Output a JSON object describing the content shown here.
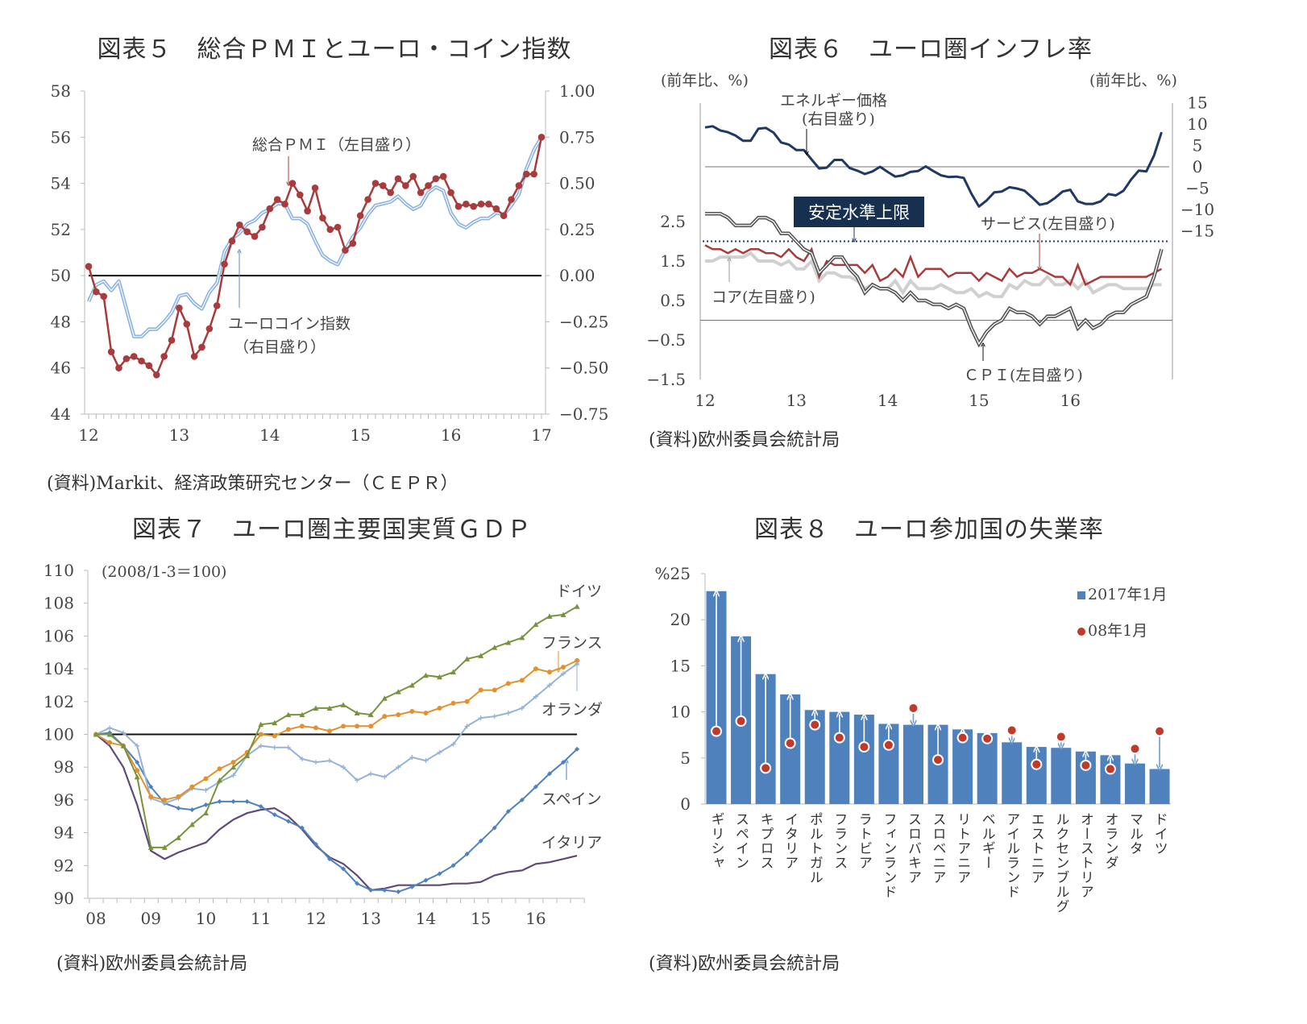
{
  "figures": {
    "fig5": {
      "title": "図表５　総合ＰＭＩとユーロ・コイン指数",
      "source": "(資料)Markit、経済政策研究センター（ＣＥＰＲ）",
      "ann_pmi": "総合ＰＭＩ（左目盛り）",
      "ann_coin_1": "ユーロコイン指数",
      "ann_coin_2": "（右目盛り）"
    },
    "fig6": {
      "title": "図表６　ユーロ圏インフレ率",
      "unit_left": "(前年比、%)",
      "unit_right": "(前年比、%)",
      "ann_energy_1": "エネルギー価格",
      "ann_energy_2": "(右目盛り)",
      "ann_target": "安定水準上限",
      "ann_services": "サービス(左目盛り)",
      "ann_core": "コア(左目盛り)",
      "ann_cpi": "ＣＰＩ(左目盛り)",
      "source": "(資料)欧州委員会統計局"
    },
    "fig7": {
      "title": "図表７　ユーロ圏主要国実質ＧＤＰ",
      "note": "(2008/1-3＝100)",
      "ann_de": "ドイツ",
      "ann_fr": "フランス",
      "ann_nl": "オランダ",
      "ann_es": "スペイン",
      "ann_it": "イタリア",
      "source": "(資料)欧州委員会統計局"
    },
    "fig8": {
      "title": "図表８　ユーロ参加国の失業率",
      "legend_bar": "2017年1月",
      "legend_dot": "08年1月",
      "source": "(資料)欧州委員会統計局"
    }
  },
  "chart_data": [
    {
      "type": "line",
      "title": "図表５　総合ＰＭＩとユーロ・コイン指数",
      "x_range": [
        "2012-01",
        "2017-01"
      ],
      "x_frequency": "monthly",
      "x_ticks": [
        "12",
        "13",
        "14",
        "15",
        "16",
        "17"
      ],
      "ylim_left": [
        44,
        58
      ],
      "y_ticks_left": [
        "58",
        "56",
        "54",
        "52",
        "50",
        "48",
        "46",
        "44"
      ],
      "ylim_right": [
        -0.75,
        1.0
      ],
      "y_ticks_right": [
        "1.00",
        "0.75",
        "0.50",
        "0.25",
        "0.00",
        "−0.25",
        "−0.50",
        "−0.75"
      ],
      "reference_line_left": 50,
      "series": [
        {
          "name": "総合ＰＭＩ（左目盛り）",
          "axis": "left",
          "color": "#a83c3c",
          "values": [
            50.4,
            49.3,
            49.1,
            46.7,
            46.0,
            46.4,
            46.5,
            46.3,
            46.1,
            45.7,
            46.5,
            47.2,
            48.6,
            47.9,
            46.5,
            46.9,
            47.7,
            48.7,
            50.5,
            51.5,
            52.2,
            51.9,
            51.7,
            52.1,
            52.9,
            53.3,
            53.1,
            54.0,
            53.5,
            52.8,
            53.8,
            52.5,
            52.0,
            52.1,
            51.1,
            51.4,
            52.6,
            53.3,
            54.0,
            53.9,
            53.6,
            54.2,
            53.9,
            54.3,
            53.6,
            53.9,
            54.2,
            54.3,
            53.6,
            53.0,
            53.1,
            53.0,
            53.1,
            53.1,
            52.9,
            52.6,
            53.3,
            53.9,
            54.4,
            54.4,
            56.0
          ]
        },
        {
          "name": "ユーロコイン指数（右目盛り）",
          "axis": "right",
          "color": "#8db3e2",
          "values": [
            -0.14,
            -0.05,
            -0.03,
            -0.08,
            -0.03,
            -0.18,
            -0.33,
            -0.33,
            -0.29,
            -0.29,
            -0.25,
            -0.2,
            -0.11,
            -0.1,
            -0.15,
            -0.18,
            -0.09,
            -0.04,
            0.13,
            0.2,
            0.23,
            0.28,
            0.3,
            0.34,
            0.36,
            0.39,
            0.39,
            0.31,
            0.31,
            0.28,
            0.19,
            0.11,
            0.08,
            0.06,
            0.14,
            0.21,
            0.26,
            0.33,
            0.38,
            0.39,
            0.4,
            0.43,
            0.39,
            0.36,
            0.38,
            0.45,
            0.48,
            0.46,
            0.34,
            0.28,
            0.26,
            0.29,
            0.31,
            0.31,
            0.34,
            0.33,
            0.38,
            0.44,
            0.58,
            0.68,
            0.75
          ]
        }
      ]
    },
    {
      "type": "line",
      "title": "図表６　ユーロ圏インフレ率",
      "x_range": [
        "2012-01",
        "2017-01"
      ],
      "x_frequency": "monthly",
      "x_ticks": [
        "12",
        "13",
        "14",
        "15",
        "16"
      ],
      "ylim_left": [
        -1.5,
        5.5
      ],
      "y_ticks_left": [
        "2.5",
        "1.5",
        "0.5",
        "−0.5",
        "−1.5"
      ],
      "y_tick_values_left": [
        2.5,
        1.5,
        0.5,
        -0.5,
        -1.5
      ],
      "ylim_right": [
        -50,
        15
      ],
      "y_ticks_right": [
        "15",
        "10",
        "5",
        "0",
        "−5",
        "−10",
        "−15"
      ],
      "y_tick_values_right": [
        15,
        10,
        5,
        0,
        -5,
        -10,
        -15
      ],
      "target_line_left": 2.0,
      "series": [
        {
          "name": "エネルギー価格(右目盛り)",
          "axis": "right",
          "color": "#1f3864",
          "values": [
            9.2,
            9.5,
            8.5,
            8.1,
            7.3,
            6.1,
            6.1,
            8.9,
            9.1,
            8.0,
            5.7,
            5.2,
            3.9,
            3.9,
            1.7,
            -0.4,
            -0.2,
            1.6,
            1.6,
            -0.3,
            -0.9,
            -1.7,
            -1.1,
            0.0,
            -1.2,
            -2.3,
            -2.0,
            -1.2,
            -1.0,
            0.1,
            -1.0,
            -2.0,
            -2.4,
            -2.3,
            -2.6,
            -6.3,
            -9.3,
            -7.9,
            -6.0,
            -5.8,
            -4.8,
            -5.1,
            -5.6,
            -7.2,
            -8.9,
            -8.5,
            -7.3,
            -5.8,
            -5.4,
            -8.1,
            -8.7,
            -8.7,
            -8.1,
            -6.4,
            -6.7,
            -5.6,
            -3.0,
            -0.9,
            -1.1,
            2.6,
            8.1
          ]
        },
        {
          "name": "コア(左目盛り)",
          "axis": "left",
          "color": "#d0d0d0",
          "values": [
            1.5,
            1.5,
            1.6,
            1.6,
            1.6,
            1.6,
            1.7,
            1.5,
            1.5,
            1.5,
            1.4,
            1.5,
            1.3,
            1.3,
            1.5,
            1.0,
            1.2,
            1.2,
            1.1,
            1.1,
            1.0,
            0.8,
            0.9,
            0.8,
            0.8,
            1.0,
            0.7,
            1.0,
            0.8,
            0.8,
            0.8,
            0.9,
            0.8,
            0.7,
            0.7,
            0.8,
            0.6,
            0.7,
            0.6,
            0.6,
            0.9,
            0.8,
            1.0,
            0.9,
            0.9,
            1.1,
            0.9,
            0.9,
            1.0,
            0.8,
            1.0,
            0.7,
            0.8,
            0.9,
            0.9,
            0.8,
            0.8,
            0.8,
            0.8,
            0.9,
            0.9
          ]
        },
        {
          "name": "サービス(左目盛り)",
          "axis": "left",
          "color": "#a83c3c",
          "values": [
            1.9,
            1.8,
            1.8,
            1.7,
            1.8,
            1.7,
            1.8,
            1.8,
            1.7,
            1.7,
            1.6,
            1.8,
            1.6,
            1.5,
            1.8,
            1.1,
            1.5,
            1.4,
            1.4,
            1.4,
            1.4,
            1.2,
            1.4,
            1.0,
            1.1,
            1.3,
            1.1,
            1.6,
            1.1,
            1.3,
            1.3,
            1.3,
            1.1,
            1.2,
            1.2,
            1.2,
            1.0,
            1.2,
            1.1,
            1.0,
            1.3,
            1.1,
            1.2,
            1.2,
            1.3,
            1.2,
            1.1,
            1.1,
            0.9,
            1.4,
            0.9,
            1.0,
            1.1,
            1.1,
            1.1,
            1.1,
            1.1,
            1.1,
            1.1,
            1.2,
            1.3
          ]
        },
        {
          "name": "ＣＰＩ(左目盛り)",
          "axis": "left",
          "color": "#555555",
          "values": [
            2.7,
            2.7,
            2.7,
            2.6,
            2.4,
            2.4,
            2.4,
            2.6,
            2.6,
            2.5,
            2.2,
            2.2,
            2.0,
            1.8,
            1.7,
            1.2,
            1.4,
            1.6,
            1.6,
            1.3,
            1.1,
            0.7,
            0.9,
            0.8,
            0.8,
            0.7,
            0.5,
            0.7,
            0.5,
            0.5,
            0.4,
            0.4,
            0.3,
            0.4,
            0.3,
            -0.2,
            -0.6,
            -0.3,
            -0.1,
            0.0,
            0.3,
            0.2,
            0.2,
            0.1,
            -0.1,
            0.1,
            0.1,
            0.2,
            0.3,
            -0.2,
            0.0,
            -0.2,
            -0.1,
            0.1,
            0.2,
            0.2,
            0.4,
            0.5,
            0.6,
            1.1,
            1.8
          ]
        }
      ]
    },
    {
      "type": "line",
      "title": "図表７　ユーロ圏主要国実質ＧＤＰ",
      "x_range": [
        "2008Q1",
        "2016Q4"
      ],
      "x_frequency": "quarterly",
      "x_ticks": [
        "08",
        "09",
        "10",
        "11",
        "12",
        "13",
        "14",
        "15",
        "16"
      ],
      "ylim": [
        90,
        110
      ],
      "y_ticks": [
        "110",
        "108",
        "106",
        "104",
        "102",
        "100",
        "98",
        "96",
        "94",
        "92",
        "90"
      ],
      "reference_line": 100,
      "series": [
        {
          "name": "ドイツ",
          "color": "#77933c",
          "marker": "triangle",
          "values": [
            100,
            100.0,
            99.3,
            97.4,
            93.1,
            93.1,
            93.7,
            94.5,
            95.2,
            97.2,
            98.0,
            98.7,
            100.6,
            100.7,
            101.2,
            101.2,
            101.6,
            101.6,
            101.8,
            101.3,
            101.2,
            102.2,
            102.6,
            103.0,
            103.6,
            103.5,
            103.8,
            104.6,
            104.8,
            105.3,
            105.6,
            105.9,
            106.7,
            107.2,
            107.3,
            107.8
          ]
        },
        {
          "name": "フランス",
          "color": "#e3902f",
          "marker": "circle",
          "values": [
            100,
            99.5,
            99.3,
            97.8,
            96.2,
            96.0,
            96.2,
            96.8,
            97.3,
            97.9,
            98.3,
            98.9,
            100.0,
            99.9,
            100.3,
            100.5,
            100.4,
            100.2,
            100.5,
            100.5,
            100.5,
            101.1,
            101.2,
            101.4,
            101.3,
            101.6,
            101.9,
            102.0,
            102.7,
            102.7,
            103.1,
            103.3,
            104.0,
            103.8,
            104.1,
            104.5
          ]
        },
        {
          "name": "オランダ",
          "color": "#95b3d7",
          "marker": "plus",
          "values": [
            100,
            100.4,
            100.1,
            99.3,
            96.1,
            95.8,
            96.1,
            96.7,
            96.6,
            97.1,
            97.5,
            98.7,
            99.3,
            99.2,
            99.2,
            98.5,
            98.3,
            98.4,
            98.0,
            97.2,
            97.6,
            97.4,
            98.0,
            98.6,
            98.4,
            98.9,
            99.4,
            100.5,
            101.0,
            101.1,
            101.3,
            101.6,
            102.3,
            103.0,
            103.7,
            104.3
          ]
        },
        {
          "name": "スペイン",
          "color": "#4f81bd",
          "marker": "diamond",
          "values": [
            100,
            100.1,
            99.3,
            98.3,
            96.8,
            95.8,
            95.5,
            95.4,
            95.7,
            95.9,
            95.9,
            95.9,
            95.6,
            95.1,
            94.7,
            94.3,
            93.3,
            92.4,
            91.8,
            90.9,
            90.5,
            90.5,
            90.4,
            90.7,
            91.1,
            91.5,
            92.0,
            92.7,
            93.5,
            94.3,
            95.3,
            96.0,
            96.8,
            97.6,
            98.3,
            99.1
          ]
        },
        {
          "name": "イタリア",
          "color": "#5f497a",
          "marker": "none",
          "values": [
            100,
            99.3,
            98.0,
            95.7,
            92.9,
            92.4,
            92.8,
            93.1,
            93.4,
            94.2,
            94.8,
            95.2,
            95.4,
            95.5,
            95.0,
            94.2,
            93.2,
            92.5,
            92.1,
            91.4,
            90.5,
            90.6,
            90.8,
            90.8,
            90.8,
            90.8,
            90.9,
            90.9,
            91.0,
            91.4,
            91.6,
            91.7,
            92.1,
            92.2,
            92.4,
            92.6
          ]
        }
      ]
    },
    {
      "type": "bar",
      "title": "図表８　ユーロ参加国の失業率",
      "ylim": [
        0,
        25
      ],
      "y_ticks": [
        "%25",
        "20",
        "15",
        "10",
        "5",
        "0"
      ],
      "legend_position": "top-right",
      "categories": [
        "ギリシャ",
        "スペイン",
        "キプロス",
        "イタリア",
        "ポルトガル",
        "フランス",
        "ラトビア",
        "フィンランド",
        "スロバキア",
        "スロベニア",
        "リトアニア",
        "ベルギー",
        "アイルランド",
        "エストニア",
        "ルクセンブルグ",
        "オーストリア",
        "オランダ",
        "マルタ",
        "ドイツ"
      ],
      "series": [
        {
          "name": "2017年1月",
          "type": "bar",
          "color": "#4f81bd",
          "values": [
            23.1,
            18.2,
            14.1,
            11.9,
            10.2,
            10.0,
            9.7,
            8.7,
            8.6,
            8.6,
            8.1,
            7.7,
            6.7,
            6.2,
            6.1,
            5.7,
            5.3,
            4.4,
            3.8
          ]
        },
        {
          "name": "08年1月",
          "type": "dot",
          "color": "#c0392b",
          "values": [
            7.9,
            9.0,
            3.9,
            6.6,
            8.6,
            7.2,
            6.2,
            6.4,
            10.4,
            4.8,
            7.2,
            7.1,
            8.0,
            4.3,
            7.3,
            4.2,
            3.8,
            6.0,
            7.9
          ]
        }
      ]
    }
  ]
}
